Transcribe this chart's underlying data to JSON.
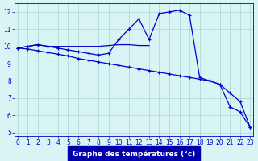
{
  "xlabel": "Graphe des températures (°c)",
  "line1_x": [
    0,
    1,
    2,
    3,
    4,
    5,
    6,
    7,
    8,
    9,
    10,
    11,
    12,
    13,
    14,
    15,
    16,
    17,
    18,
    19,
    20,
    21,
    22,
    23
  ],
  "line1_y": [
    9.9,
    10.0,
    10.1,
    10.0,
    9.9,
    9.8,
    9.7,
    9.6,
    9.5,
    9.6,
    10.4,
    11.0,
    11.6,
    10.4,
    11.9,
    12.0,
    12.1,
    11.8,
    8.2,
    8.0,
    7.8,
    6.5,
    6.2,
    5.3
  ],
  "line2_x": [
    0,
    1,
    2,
    3,
    4,
    5,
    6,
    7,
    8,
    9,
    10,
    11,
    12,
    13,
    14,
    15,
    16,
    17,
    18,
    19,
    20,
    21,
    22,
    23
  ],
  "line2_y": [
    9.9,
    9.85,
    9.75,
    9.65,
    9.55,
    9.45,
    9.3,
    9.2,
    9.1,
    9.0,
    8.9,
    8.8,
    8.7,
    8.6,
    8.5,
    8.4,
    8.3,
    8.2,
    8.1,
    8.0,
    7.8,
    7.3,
    6.8,
    5.3
  ],
  "line3_x": [
    0,
    1,
    2,
    3,
    4,
    5,
    6,
    7,
    8,
    9,
    10,
    11,
    12,
    13
  ],
  "line3_y": [
    9.9,
    10.0,
    10.1,
    10.0,
    10.0,
    10.0,
    10.0,
    10.0,
    10.0,
    10.05,
    10.1,
    10.1,
    10.05,
    10.05
  ],
  "bg_color": "#d8f4f4",
  "line_color": "#0000cc",
  "grid_color": "#aad4d4",
  "xlabel_bg": "#0000aa",
  "xlabel_fg": "#ffffff",
  "ylim": [
    4.8,
    12.5
  ],
  "xlim": [
    -0.3,
    23.3
  ],
  "yticks": [
    5,
    6,
    7,
    8,
    9,
    10,
    11,
    12
  ],
  "xticks": [
    0,
    1,
    2,
    3,
    4,
    5,
    6,
    7,
    8,
    9,
    10,
    11,
    12,
    13,
    14,
    15,
    16,
    17,
    18,
    19,
    20,
    21,
    22,
    23
  ],
  "tick_fontsize": 5.5,
  "xlabel_fontsize": 6.5
}
